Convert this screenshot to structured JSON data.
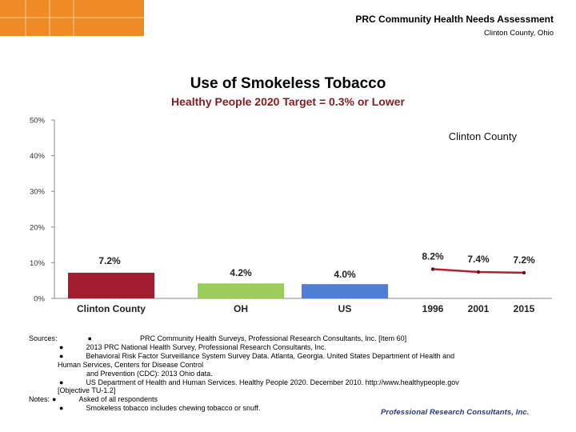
{
  "header": {
    "title": "PRC Community Health Needs Assessment",
    "subtitle": "Clinton County, Ohio"
  },
  "chart_data": {
    "type": "bar",
    "title": "Use of Smokeless Tobacco",
    "subtitle": "Healthy People 2020 Target = 0.3% or Lower",
    "ylim": [
      0,
      50
    ],
    "yticks": [
      "0%",
      "10%",
      "20%",
      "30%",
      "40%",
      "50%"
    ],
    "grid": false,
    "bars": {
      "categories": [
        "Clinton County",
        "OH",
        "US"
      ],
      "values": [
        7.2,
        4.2,
        4.0
      ],
      "labels": [
        "7.2%",
        "4.2%",
        "4.0%"
      ],
      "colors": [
        "#a01c2e",
        "#9ccc5a",
        "#4f7ed6"
      ]
    },
    "trend": {
      "type": "line",
      "name": "Clinton County",
      "x": [
        "1996",
        "2001",
        "2015"
      ],
      "values": [
        8.2,
        7.4,
        7.2
      ],
      "labels": [
        "8.2%",
        "7.4%",
        "7.2%"
      ],
      "color": "#b5202e"
    }
  },
  "footer": {
    "sources_label": "Sources:",
    "notes_label": "Notes:",
    "bullet": "●",
    "source_lines": [
      "PRC Community Health Surveys, Professional Research Consultants, Inc. [Item 60]",
      "2013 PRC National Health Survey, Professional Research Consultants, Inc.",
      "Behavioral Risk Factor Surveillance System Survey Data. Atlanta, Georgia. United States Department of Health and",
      "Human Services, Centers for Disease Control",
      "and Prevention (CDC): 2013 Ohio data.",
      "US Department of Health and Human Services. Healthy People 2020. December 2010. http://www.healthypeople.gov",
      "[Objective TU-1.2]"
    ],
    "notes_lines": [
      "Asked of all respondents",
      "Smokeless tobacco includes chewing tobacco or snuff."
    ],
    "logo_text": "Professional Research Consultants, Inc."
  }
}
